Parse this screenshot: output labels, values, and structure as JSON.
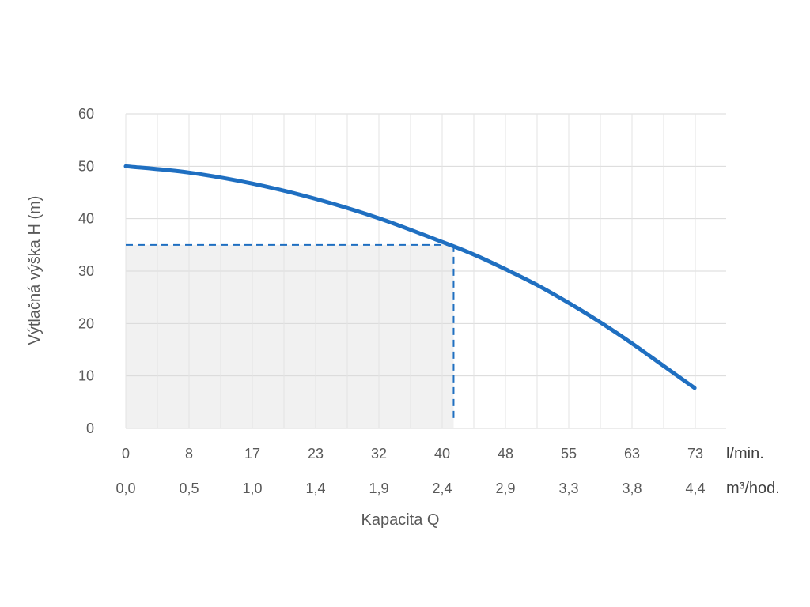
{
  "chart_data": {
    "type": "line",
    "ylabel": "Výtlačná výška H (m)",
    "xlabel": "Kapacita Q",
    "ylim": [
      0,
      60
    ],
    "yticks": [
      0,
      10,
      20,
      30,
      40,
      50,
      60
    ],
    "xlim": [
      0,
      76
    ],
    "x_ticks_lmin": [
      "0",
      "8",
      "17",
      "23",
      "32",
      "40",
      "48",
      "55",
      "63",
      "73"
    ],
    "x_ticks_m3h": [
      "0,0",
      "0,5",
      "1,0",
      "1,4",
      "1,9",
      "2,4",
      "2,9",
      "3,3",
      "3,8",
      "4,4"
    ],
    "x_unit_lmin": "l/min.",
    "x_unit_m3h": "m³/hod.",
    "grid": true,
    "series": [
      {
        "color": "#1f6fc1",
        "x": [
          0,
          8,
          16,
          24,
          32,
          40,
          44,
          48,
          52,
          56,
          60,
          64,
          68,
          72
        ],
        "y": [
          50,
          48.8,
          46.7,
          43.8,
          40.1,
          35.6,
          33.2,
          30.4,
          27.4,
          24.0,
          20.3,
          16.3,
          12.0,
          7.7
        ]
      }
    ],
    "operating_point": {
      "x": 41.5,
      "y": 35,
      "color": "#1f6fc1",
      "area_color": "#f1f1f1"
    }
  }
}
